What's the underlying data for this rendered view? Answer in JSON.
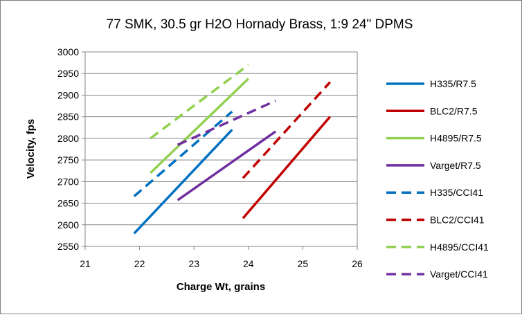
{
  "chart_data": {
    "type": "line",
    "title": "77 SMK, 30.5 gr H2O Hornady Brass, 1:9 24\" DPMS",
    "xlabel": "Charge Wt, grains",
    "ylabel": "Velocity, fps",
    "xlim": [
      21,
      26
    ],
    "ylim": [
      2550,
      3000
    ],
    "x_ticks": [
      "21",
      "22",
      "23",
      "24",
      "25",
      "26"
    ],
    "y_ticks": [
      "2550",
      "2600",
      "2650",
      "2700",
      "2750",
      "2800",
      "2850",
      "2900",
      "2950",
      "3000"
    ],
    "grid": "horizontal",
    "legend_position": "right",
    "series": [
      {
        "name": "H335/R7.5",
        "color": "#0070c0",
        "style": "solid",
        "x": [
          21.9,
          23.7
        ],
        "y": [
          2580,
          2820
        ]
      },
      {
        "name": "BLC2/R7.5",
        "color": "#c00000",
        "style": "solid",
        "x": [
          23.9,
          25.5
        ],
        "y": [
          2615,
          2850
        ]
      },
      {
        "name": "H4895/R7.5",
        "color": "#92d050",
        "style": "solid",
        "x": [
          22.2,
          24.0
        ],
        "y": [
          2720,
          2938
        ]
      },
      {
        "name": "Varget/R7.5",
        "color": "#7030a0",
        "style": "solid",
        "x": [
          22.7,
          24.5
        ],
        "y": [
          2657,
          2816
        ]
      },
      {
        "name": "H335/CCI41",
        "color": "#0070c0",
        "style": "dashed",
        "x": [
          21.9,
          23.7
        ],
        "y": [
          2666,
          2862
        ]
      },
      {
        "name": "BLC2/CCI41",
        "color": "#c00000",
        "style": "dashed",
        "x": [
          23.9,
          25.5
        ],
        "y": [
          2708,
          2930
        ]
      },
      {
        "name": "H4895/CCI41",
        "color": "#92d050",
        "style": "dashed",
        "x": [
          22.2,
          24.0
        ],
        "y": [
          2800,
          2970
        ]
      },
      {
        "name": "Varget/CCI41",
        "color": "#7030a0",
        "style": "dashed",
        "x": [
          22.7,
          24.5
        ],
        "y": [
          2785,
          2887
        ]
      }
    ]
  }
}
